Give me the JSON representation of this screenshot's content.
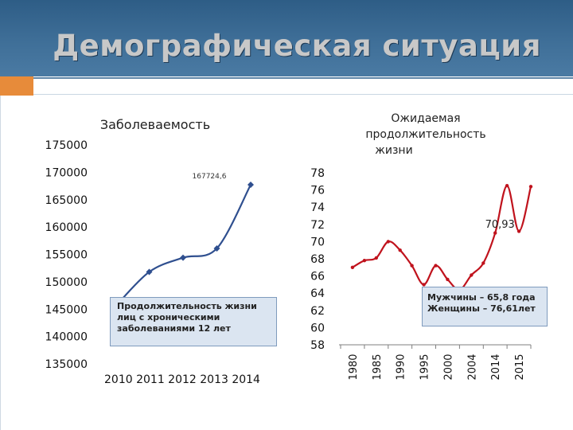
{
  "slide": {
    "title": "Демографическая ситуация"
  },
  "chart_data": [
    {
      "type": "line",
      "title": "Заболеваемость",
      "categories": [
        "2010",
        "2011",
        "2012",
        "2013",
        "2014"
      ],
      "x_axis_text": "2010 2011 2012 2013 2014",
      "values": [
        145500,
        151800,
        154400,
        156100,
        167724.6
      ],
      "data_label": "167724,6",
      "ylim": [
        135000,
        175000
      ],
      "yticks": [
        "135000",
        "140000",
        "145000",
        "150000",
        "155000",
        "160000",
        "165000",
        "170000",
        "175000"
      ],
      "color": "#2f4f8f",
      "annotation": "Продолжительность жизни лиц с хроническими заболеваниями 12 лет"
    },
    {
      "type": "line",
      "title": "Ожидаемая продолжительность жизни",
      "categories": [
        "1980",
        "1985",
        "1990",
        "1995",
        "2000",
        "2004",
        "2014",
        "2015"
      ],
      "points": [
        {
          "x": 0.0,
          "y": 67.0
        },
        {
          "x": 0.5,
          "y": 67.8
        },
        {
          "x": 1.0,
          "y": 68.1
        },
        {
          "x": 1.5,
          "y": 70.0
        },
        {
          "x": 2.0,
          "y": 69.0
        },
        {
          "x": 2.5,
          "y": 67.2
        },
        {
          "x": 3.0,
          "y": 65.0
        },
        {
          "x": 3.5,
          "y": 67.2
        },
        {
          "x": 4.0,
          "y": 65.6
        },
        {
          "x": 4.5,
          "y": 64.4
        },
        {
          "x": 5.0,
          "y": 66.1
        },
        {
          "x": 5.5,
          "y": 67.5
        },
        {
          "x": 6.0,
          "y": 71.0
        },
        {
          "x": 6.5,
          "y": 76.5
        },
        {
          "x": 7.0,
          "y": 71.2
        },
        {
          "x": 7.5,
          "y": 76.4
        }
      ],
      "data_label": "70,93",
      "ylim": [
        58,
        78
      ],
      "yticks": [
        "58",
        "60",
        "62",
        "64",
        "66",
        "68",
        "70",
        "72",
        "74",
        "76",
        "78"
      ],
      "color": "#c0131d",
      "annotation": [
        "Мужчины – 65,8 года",
        "Женщины – 76,61лет"
      ]
    }
  ]
}
